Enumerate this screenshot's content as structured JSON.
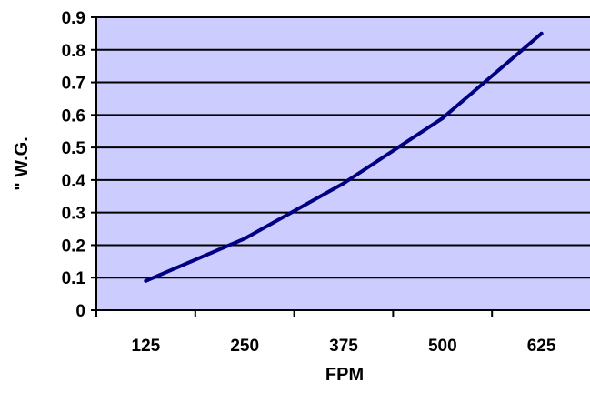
{
  "chart_data": {
    "type": "line",
    "title": "",
    "xlabel": "FPM",
    "ylabel": "\" W.G.",
    "categories": [
      "125",
      "250",
      "375",
      "500",
      "625"
    ],
    "x_ticks": [
      "125",
      "250",
      "375",
      "500",
      "625"
    ],
    "y_ticks": [
      "0",
      "0.1",
      "0.2",
      "0.3",
      "0.4",
      "0.5",
      "0.6",
      "0.7",
      "0.8",
      "0.9"
    ],
    "ylim": [
      0,
      0.9
    ],
    "grid": true,
    "legend": "none",
    "series": [
      {
        "values": [
          0.09,
          0.22,
          0.39,
          0.59,
          0.85
        ]
      }
    ],
    "colors": {
      "plot_background": "#ccccff",
      "line": "#000080",
      "gridline": "#000000",
      "axis": "#000000"
    }
  }
}
